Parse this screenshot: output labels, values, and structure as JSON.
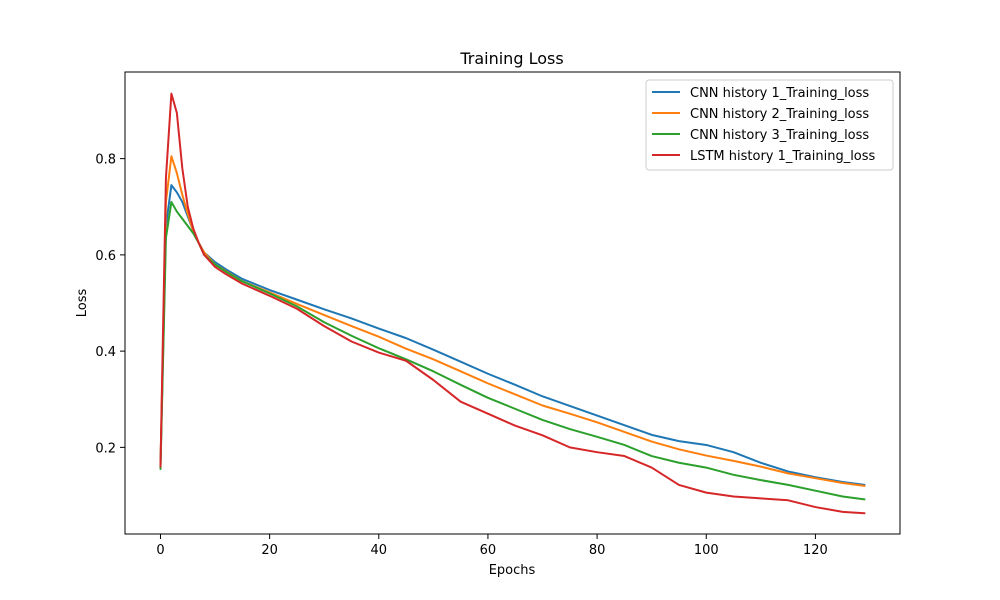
{
  "chart_data": {
    "type": "line",
    "title": "Training Loss",
    "xlabel": "Epochs",
    "ylabel": "Loss",
    "xlim": [
      -6.5,
      135.5
    ],
    "ylim": [
      0.02,
      0.98
    ],
    "xticks": [
      0,
      20,
      40,
      60,
      80,
      100,
      120
    ],
    "yticks": [
      0.2,
      0.4,
      0.6,
      0.8
    ],
    "grid": false,
    "legend_position": "top-right",
    "series": [
      {
        "name": "CNN history 1_Training_loss",
        "color": "#1f77b4",
        "x": [
          0,
          1,
          2,
          3,
          4,
          5,
          6,
          7,
          8,
          10,
          12,
          15,
          20,
          25,
          30,
          35,
          40,
          45,
          50,
          55,
          60,
          65,
          70,
          75,
          80,
          85,
          90,
          95,
          100,
          105,
          110,
          115,
          120,
          125,
          129
        ],
        "y": [
          0.16,
          0.66,
          0.745,
          0.73,
          0.71,
          0.68,
          0.65,
          0.625,
          0.605,
          0.585,
          0.57,
          0.55,
          0.527,
          0.507,
          0.487,
          0.468,
          0.447,
          0.427,
          0.403,
          0.378,
          0.353,
          0.33,
          0.306,
          0.286,
          0.266,
          0.246,
          0.226,
          0.213,
          0.205,
          0.19,
          0.168,
          0.15,
          0.138,
          0.128,
          0.122
        ]
      },
      {
        "name": "CNN history 2_Training_loss",
        "color": "#ff7f0e",
        "x": [
          0,
          1,
          2,
          3,
          4,
          5,
          6,
          7,
          8,
          10,
          12,
          15,
          20,
          25,
          30,
          35,
          40,
          45,
          50,
          55,
          60,
          65,
          70,
          75,
          80,
          85,
          90,
          95,
          100,
          105,
          110,
          115,
          120,
          125,
          129
        ],
        "y": [
          0.16,
          0.71,
          0.805,
          0.77,
          0.725,
          0.685,
          0.65,
          0.625,
          0.605,
          0.58,
          0.566,
          0.545,
          0.522,
          0.498,
          0.475,
          0.452,
          0.43,
          0.405,
          0.383,
          0.358,
          0.333,
          0.31,
          0.287,
          0.27,
          0.252,
          0.232,
          0.212,
          0.196,
          0.183,
          0.172,
          0.16,
          0.146,
          0.136,
          0.126,
          0.12
        ]
      },
      {
        "name": "CNN history 3_Training_loss",
        "color": "#2ca02c",
        "x": [
          0,
          1,
          2,
          3,
          4,
          5,
          6,
          7,
          8,
          10,
          12,
          15,
          20,
          25,
          30,
          35,
          40,
          45,
          50,
          55,
          60,
          65,
          70,
          75,
          80,
          85,
          90,
          95,
          100,
          105,
          110,
          115,
          120,
          125,
          129
        ],
        "y": [
          0.155,
          0.635,
          0.71,
          0.69,
          0.675,
          0.66,
          0.645,
          0.625,
          0.6,
          0.58,
          0.565,
          0.545,
          0.52,
          0.493,
          0.46,
          0.432,
          0.406,
          0.383,
          0.358,
          0.33,
          0.303,
          0.28,
          0.257,
          0.238,
          0.222,
          0.205,
          0.182,
          0.168,
          0.158,
          0.143,
          0.132,
          0.122,
          0.11,
          0.098,
          0.092
        ]
      },
      {
        "name": "LSTM history 1_Training_loss",
        "color": "#d62728",
        "x": [
          0,
          1,
          2,
          3,
          4,
          5,
          6,
          7,
          8,
          10,
          12,
          15,
          20,
          25,
          30,
          35,
          40,
          45,
          50,
          55,
          60,
          65,
          70,
          75,
          80,
          85,
          90,
          95,
          100,
          105,
          110,
          115,
          120,
          125,
          129
        ],
        "y": [
          0.16,
          0.76,
          0.935,
          0.895,
          0.78,
          0.7,
          0.655,
          0.625,
          0.6,
          0.575,
          0.56,
          0.54,
          0.515,
          0.488,
          0.452,
          0.42,
          0.397,
          0.38,
          0.34,
          0.295,
          0.27,
          0.245,
          0.225,
          0.2,
          0.19,
          0.182,
          0.158,
          0.122,
          0.106,
          0.098,
          0.094,
          0.09,
          0.076,
          0.066,
          0.063
        ]
      }
    ]
  }
}
